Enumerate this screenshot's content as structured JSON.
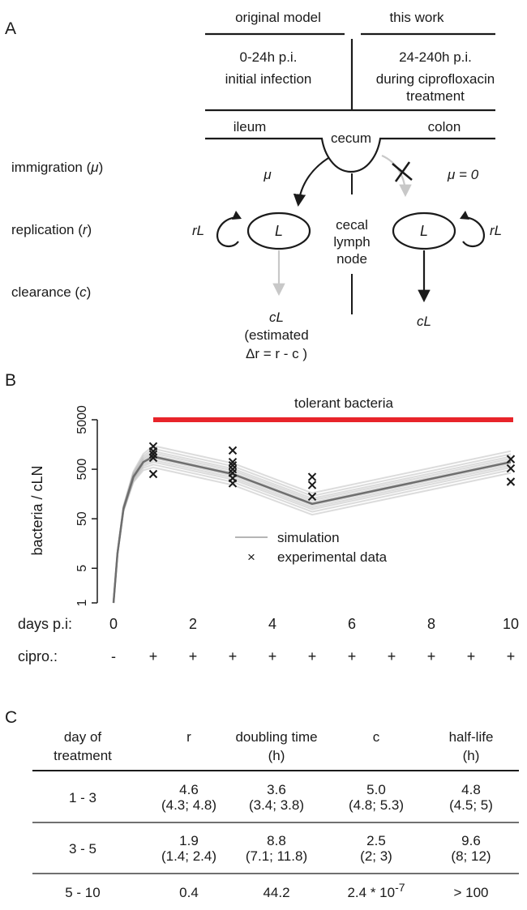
{
  "panel_a": {
    "label": "A",
    "header": {
      "left_title": "original model",
      "right_title": "this work",
      "left_time": "0-24h p.i.",
      "left_desc": "initial infection",
      "right_time": "24-240h p.i.",
      "right_desc_1": "during ciprofloxacin",
      "right_desc_2": "treatment"
    },
    "gut": {
      "ileum": "ileum",
      "cecum": "cecum",
      "colon": "colon"
    },
    "rows": {
      "immigration": "immigration (",
      "immigration_sym": "μ",
      "replication": "replication (",
      "replication_sym": "r",
      "clearance": "clearance (",
      "clearance_sym": "c",
      "close": ")"
    },
    "left_model": {
      "mu": "μ",
      "rL": "rL",
      "L": "L",
      "cL": "cL",
      "estimated": "(estimated",
      "delta_r": "Δr = r - c )"
    },
    "right_model": {
      "mu_zero": "μ = 0",
      "rL": "rL",
      "L": "L",
      "cL": "cL"
    },
    "node": {
      "line1": "cecal",
      "line2": "lymph",
      "line3": "node"
    }
  },
  "panel_b": {
    "label": "B",
    "bar_label": "tolerant bacteria",
    "legend": {
      "simulation": "simulation",
      "experimental": "experimental data"
    },
    "days_label": "days p.i:",
    "cipro_label": "cipro.:",
    "cipro_marks": [
      "-",
      "+",
      "+",
      "+",
      "+",
      "+",
      "+",
      "+",
      "+",
      "+",
      "+"
    ],
    "colors": {
      "bar": "#e8242a",
      "sim": "#9a9a9a"
    }
  },
  "chart_data": {
    "type": "line",
    "xlabel": "",
    "ylabel": "bacteria / cLN",
    "y_scale": "log",
    "xlim": [
      0,
      10
    ],
    "ylim": [
      1,
      5000
    ],
    "x_ticks": [
      "0",
      "2",
      "4",
      "6",
      "8",
      "10"
    ],
    "y_ticks": [
      "1",
      "5",
      "50",
      "500",
      "5000"
    ],
    "series": [
      {
        "name": "simulation",
        "x": [
          0,
          0.1,
          0.25,
          0.5,
          0.75,
          1,
          3,
          5,
          10
        ],
        "y": [
          1,
          10,
          80,
          350,
          700,
          900,
          400,
          100,
          700
        ]
      },
      {
        "name": "experimental data",
        "x": [
          1,
          1,
          1,
          1,
          1,
          3,
          3,
          3,
          3,
          3,
          3,
          3,
          5,
          5,
          5,
          10,
          10,
          10
        ],
        "y": [
          1450,
          1150,
          1000,
          850,
          400,
          1200,
          700,
          600,
          500,
          420,
          330,
          260,
          350,
          240,
          140,
          800,
          520,
          280
        ]
      }
    ]
  },
  "panel_c": {
    "label": "C",
    "headers": [
      [
        "day of",
        "treatment"
      ],
      [
        "r",
        ""
      ],
      [
        "doubling time",
        "(h)"
      ],
      [
        "c",
        ""
      ],
      [
        "half-life",
        "(h)"
      ]
    ],
    "rows": [
      {
        "day": "1 - 3",
        "r": "4.6",
        "r_ci": "(4.3; 4.8)",
        "dt": "3.6",
        "dt_ci": "(3.4; 3.8)",
        "c": "5.0",
        "c_ci": "(4.8; 5.3)",
        "hl": "4.8",
        "hl_ci": "(4.5; 5)"
      },
      {
        "day": "3 - 5",
        "r": "1.9",
        "r_ci": "(1.4; 2.4)",
        "dt": "8.8",
        "dt_ci": "(7.1; 11.8)",
        "c": "2.5",
        "c_ci": "(2; 3)",
        "hl": "9.6",
        "hl_ci": "(8; 12)"
      },
      {
        "day": "5 - 10",
        "r": "0.4",
        "r_ci": "",
        "dt": "44.2",
        "dt_ci": "",
        "c_base": "2.4 * 10",
        "c_exp": "-7",
        "c_ci": "",
        "hl": "> 100",
        "hl_ci": ""
      }
    ]
  }
}
